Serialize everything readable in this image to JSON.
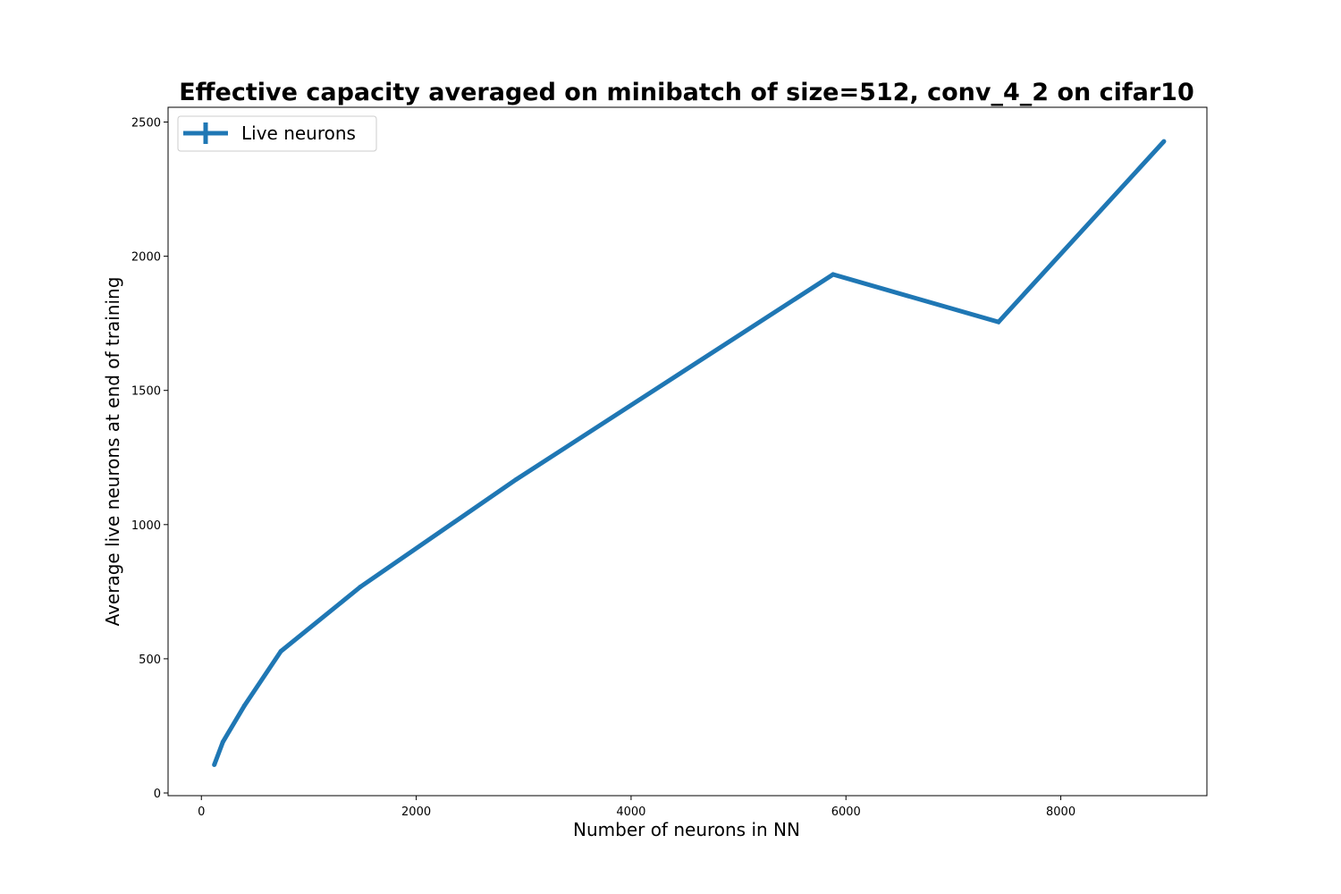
{
  "chart_data": {
    "type": "line",
    "title": "Effective capacity averaged on minibatch of size=512, conv_4_2 on cifar10",
    "xlabel": "Number of neurons in NN",
    "ylabel": "Average live neurons at end of training",
    "xlim": [
      -310,
      9360
    ],
    "ylim": [
      -10,
      2555
    ],
    "xticks": [
      0,
      2000,
      4000,
      6000,
      8000
    ],
    "xtick_labels": [
      "0",
      "2000",
      "4000",
      "6000",
      "8000"
    ],
    "yticks": [
      0,
      500,
      1000,
      1500,
      2000,
      2500
    ],
    "ytick_labels": [
      "0",
      "500",
      "1000",
      "1500",
      "2000",
      "2500"
    ],
    "legend_position": "upper-left",
    "grid": false,
    "series": [
      {
        "name": "Live neurons",
        "color": "#1f77b4",
        "errorbars": true,
        "x": [
          120,
          200,
          400,
          740,
          1480,
          2930,
          5880,
          7420,
          8960
        ],
        "y": [
          105,
          190,
          325,
          528,
          768,
          1168,
          1932,
          1755,
          2428
        ]
      }
    ]
  }
}
